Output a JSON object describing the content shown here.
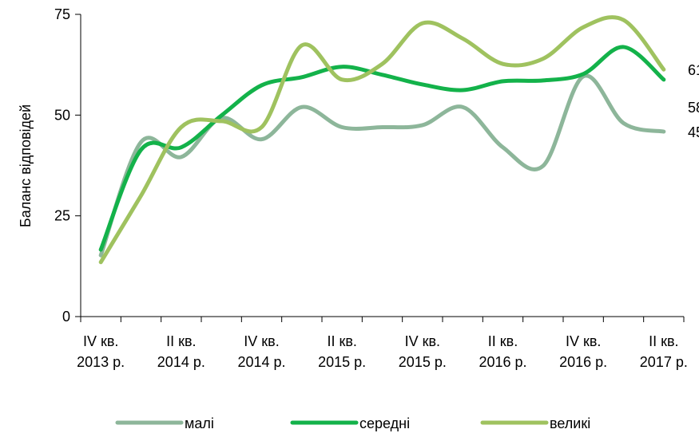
{
  "chart_data": {
    "type": "line",
    "y_label": "Баланс відповідей",
    "categories": [
      "IV кв.\n2013 р.",
      null,
      "II кв.\n2014 р.",
      null,
      "IV кв.\n2014 р.",
      null,
      "II кв.\n2015 р.",
      null,
      "IV кв.\n2015 р.",
      null,
      "II кв.\n2016 р.",
      null,
      "IV кв.\n2016 р.",
      null,
      "II кв.\n2017 р."
    ],
    "series": [
      {
        "name": "малі",
        "color": "#8db69a",
        "values": [
          15.2,
          43.3,
          39.6,
          49.3,
          44,
          52,
          47,
          47,
          47.5,
          52,
          42,
          37.4,
          59.6,
          48,
          45.9
        ]
      },
      {
        "name": "середні",
        "color": "#13b24a",
        "values": [
          16.6,
          41.4,
          42,
          49.9,
          57.4,
          59.4,
          62,
          60,
          57.6,
          56.2,
          58.4,
          58.6,
          60.2,
          66.9,
          58.8
        ]
      },
      {
        "name": "великі",
        "color": "#9fc25f",
        "values": [
          13.5,
          30,
          47,
          48.5,
          47,
          67.3,
          58.8,
          62.7,
          72.8,
          69,
          62.7,
          64,
          71.8,
          73.6,
          61.3
        ]
      }
    ],
    "ylim": [
      0,
      75
    ],
    "yticks": [
      0,
      25,
      50,
      75
    ],
    "grid": false,
    "smooth": true,
    "legend": "bottom"
  }
}
